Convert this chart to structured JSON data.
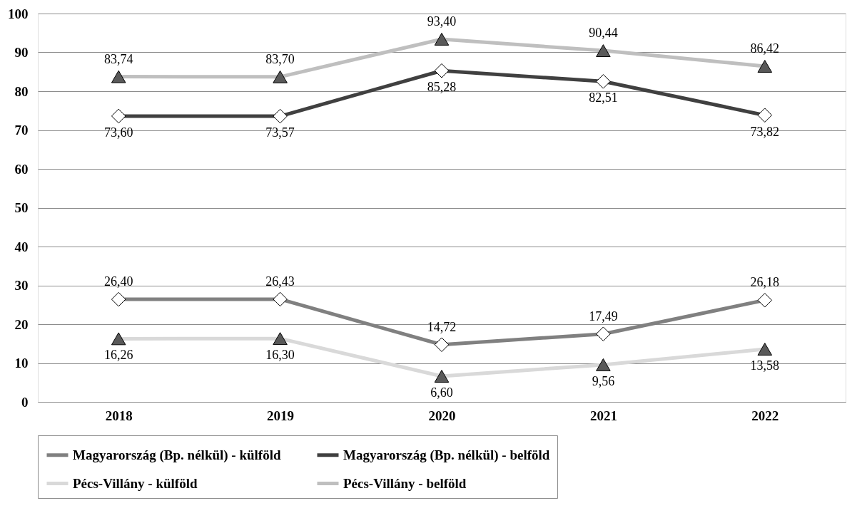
{
  "chart_data": {
    "type": "line",
    "categories": [
      "2018",
      "2019",
      "2020",
      "2021",
      "2022"
    ],
    "ylim": [
      0,
      100
    ],
    "yticks": [
      0,
      10,
      20,
      30,
      40,
      50,
      60,
      70,
      80,
      90,
      100
    ],
    "grid": "y",
    "legend": "bottom",
    "line_style": "solid",
    "series": [
      {
        "name": "Magyarország (Bp. nélkül) - külföld",
        "color": "#808080",
        "marker": "diamond",
        "values": [
          26.4,
          26.43,
          14.72,
          17.49,
          26.18
        ],
        "value_labels": [
          "26,40",
          "26,43",
          "14,72",
          "17,49",
          "26,18"
        ]
      },
      {
        "name": "Magyarország (Bp. nélkül) - belföld",
        "color": "#404040",
        "marker": "diamond",
        "values": [
          73.6,
          73.57,
          85.28,
          82.51,
          73.82
        ],
        "value_labels": [
          "73,60",
          "73,57",
          "85,28",
          "82,51",
          "73,82"
        ]
      },
      {
        "name": "Pécs-Villány - külföld",
        "color": "#d9d9d9",
        "marker": "triangle",
        "values": [
          16.26,
          16.3,
          6.6,
          9.56,
          13.58
        ],
        "value_labels": [
          "16,26",
          "16,30",
          "6,60",
          "9,56",
          "13,58"
        ]
      },
      {
        "name": "Pécs-Villány - belföld",
        "color": "#bfbfbf",
        "marker": "triangle",
        "values": [
          83.74,
          83.7,
          93.4,
          90.44,
          86.42
        ],
        "value_labels": [
          "83,74",
          "83,70",
          "93,40",
          "90,44",
          "86,42"
        ]
      }
    ]
  }
}
